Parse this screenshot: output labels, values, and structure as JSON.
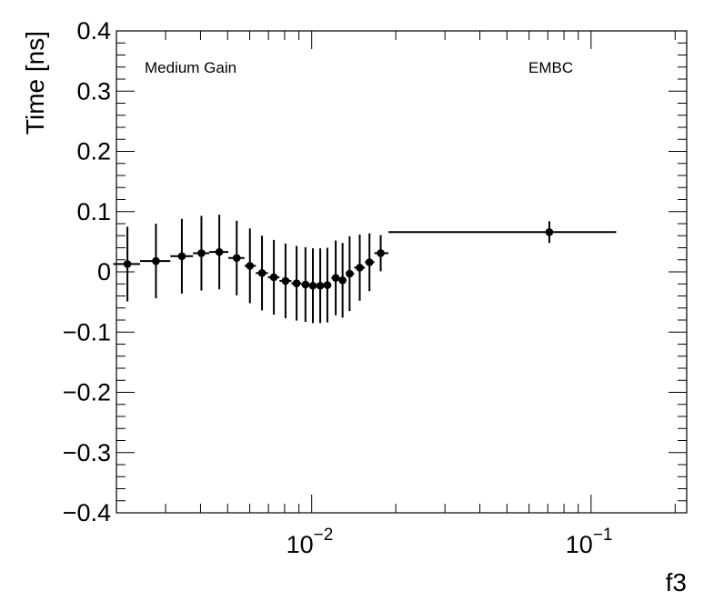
{
  "chart_data": {
    "type": "scatter",
    "xlabel": "f3",
    "ylabel": "Time [ns]",
    "x_scale": "log",
    "xlim": [
      0.002,
      0.22
    ],
    "ylim": [
      -0.4,
      0.4
    ],
    "grid": false,
    "annotations": [
      "Medium Gain",
      "EMBC"
    ],
    "y_ticks": [
      {
        "value": 0.4,
        "label": "0.4"
      },
      {
        "value": 0.3,
        "label": "0.3"
      },
      {
        "value": 0.2,
        "label": "0.2"
      },
      {
        "value": 0.1,
        "label": "0.1"
      },
      {
        "value": 0,
        "label": "0"
      },
      {
        "value": -0.1,
        "label": "−0.1"
      },
      {
        "value": -0.2,
        "label": "−0.2"
      },
      {
        "value": -0.3,
        "label": "−0.3"
      },
      {
        "value": -0.4,
        "label": "−0.4"
      }
    ],
    "x_ticks": [
      {
        "value": 0.01,
        "base": "10",
        "exp": "−2"
      },
      {
        "value": 0.1,
        "base": "10",
        "exp": "−1"
      }
    ],
    "points": [
      {
        "x": 0.00219,
        "y": 0.013,
        "xlo": 0.00195,
        "xhi": 0.00243,
        "yerr": 0.062
      },
      {
        "x": 0.00277,
        "y": 0.018,
        "xlo": 0.00243,
        "xhi": 0.00312,
        "yerr": 0.062
      },
      {
        "x": 0.00343,
        "y": 0.026,
        "xlo": 0.00312,
        "xhi": 0.00376,
        "yerr": 0.062
      },
      {
        "x": 0.00403,
        "y": 0.031,
        "xlo": 0.00376,
        "xhi": 0.0043,
        "yerr": 0.062
      },
      {
        "x": 0.00467,
        "y": 0.033,
        "xlo": 0.0043,
        "xhi": 0.00503,
        "yerr": 0.062
      },
      {
        "x": 0.00539,
        "y": 0.023,
        "xlo": 0.00503,
        "xhi": 0.00575,
        "yerr": 0.062
      },
      {
        "x": 0.00601,
        "y": 0.01,
        "xlo": 0.00575,
        "xhi": 0.00631,
        "yerr": 0.062
      },
      {
        "x": 0.00664,
        "y": -0.002,
        "xlo": 0.00631,
        "xhi": 0.00697,
        "yerr": 0.062
      },
      {
        "x": 0.00732,
        "y": -0.009,
        "xlo": 0.00697,
        "xhi": 0.00767,
        "yerr": 0.062
      },
      {
        "x": 0.00806,
        "y": -0.015,
        "xlo": 0.00767,
        "xhi": 0.00846,
        "yerr": 0.062
      },
      {
        "x": 0.00883,
        "y": -0.019,
        "xlo": 0.00846,
        "xhi": 0.00918,
        "yerr": 0.062
      },
      {
        "x": 0.0095,
        "y": -0.021,
        "xlo": 0.00918,
        "xhi": 0.00979,
        "yerr": 0.062
      },
      {
        "x": 0.0101,
        "y": -0.023,
        "xlo": 0.00979,
        "xhi": 0.01041,
        "yerr": 0.062
      },
      {
        "x": 0.01073,
        "y": -0.023,
        "xlo": 0.01041,
        "xhi": 0.01105,
        "yerr": 0.062
      },
      {
        "x": 0.01138,
        "y": -0.022,
        "xlo": 0.01105,
        "xhi": 0.01176,
        "yerr": 0.062
      },
      {
        "x": 0.01219,
        "y": -0.01,
        "xlo": 0.01176,
        "xhi": 0.01253,
        "yerr": 0.062
      },
      {
        "x": 0.0129,
        "y": -0.014,
        "xlo": 0.01253,
        "xhi": 0.01329,
        "yerr": 0.062
      },
      {
        "x": 0.01367,
        "y": -0.003,
        "xlo": 0.01329,
        "xhi": 0.0142,
        "yerr": 0.062
      },
      {
        "x": 0.01486,
        "y": 0.007,
        "xlo": 0.0142,
        "xhi": 0.01551,
        "yerr": 0.055
      },
      {
        "x": 0.0161,
        "y": 0.016,
        "xlo": 0.01551,
        "xhi": 0.01677,
        "yerr": 0.048
      },
      {
        "x": 0.01766,
        "y": 0.031,
        "xlo": 0.01677,
        "xhi": 0.01883,
        "yerr": 0.03
      },
      {
        "x": 0.0709,
        "y": 0.066,
        "xlo": 0.01883,
        "xhi": 0.123,
        "yerr": 0.018
      }
    ]
  }
}
